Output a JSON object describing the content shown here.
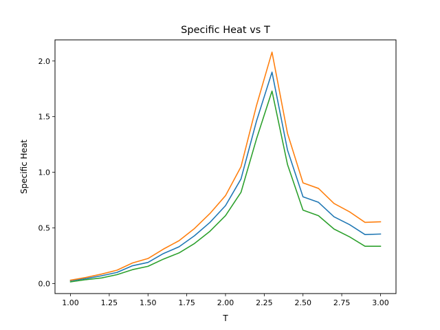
{
  "chart_data": {
    "type": "line",
    "title": "Specific Heat vs T",
    "xlabel": "T",
    "ylabel": "Specific Heat",
    "xlim": [
      0.9,
      3.1
    ],
    "ylim": [
      -0.09,
      2.19
    ],
    "xticks": [
      1.0,
      1.25,
      1.5,
      1.75,
      2.0,
      2.25,
      2.5,
      2.75,
      3.0
    ],
    "xtick_labels": [
      "1.00",
      "1.25",
      "1.50",
      "1.75",
      "2.00",
      "2.25",
      "2.50",
      "2.75",
      "3.00"
    ],
    "yticks": [
      0.0,
      0.5,
      1.0,
      1.5,
      2.0
    ],
    "ytick_labels": [
      "0.0",
      "0.5",
      "1.0",
      "1.5",
      "2.0"
    ],
    "grid": false,
    "legend": "none",
    "x": [
      1.0,
      1.1,
      1.2,
      1.3,
      1.4,
      1.5,
      1.6,
      1.7,
      1.8,
      1.9,
      2.0,
      2.1,
      2.2,
      2.3,
      2.4,
      2.5,
      2.6,
      2.7,
      2.8,
      2.9,
      3.0
    ],
    "series": [
      {
        "color": "#1f77b4",
        "values": [
          0.025,
          0.045,
          0.07,
          0.1,
          0.16,
          0.19,
          0.27,
          0.33,
          0.43,
          0.55,
          0.7,
          0.94,
          1.46,
          1.9,
          1.2,
          0.78,
          0.73,
          0.6,
          0.53,
          0.44,
          0.445
        ]
      },
      {
        "color": "#ff7f0e",
        "values": [
          0.03,
          0.055,
          0.085,
          0.12,
          0.185,
          0.225,
          0.31,
          0.385,
          0.495,
          0.63,
          0.79,
          1.05,
          1.6,
          2.08,
          1.35,
          0.905,
          0.855,
          0.72,
          0.645,
          0.55,
          0.555
        ]
      },
      {
        "color": "#2ca02c",
        "values": [
          0.015,
          0.035,
          0.05,
          0.08,
          0.125,
          0.155,
          0.22,
          0.275,
          0.36,
          0.47,
          0.61,
          0.82,
          1.3,
          1.73,
          1.07,
          0.66,
          0.61,
          0.49,
          0.42,
          0.335,
          0.335
        ]
      }
    ]
  }
}
